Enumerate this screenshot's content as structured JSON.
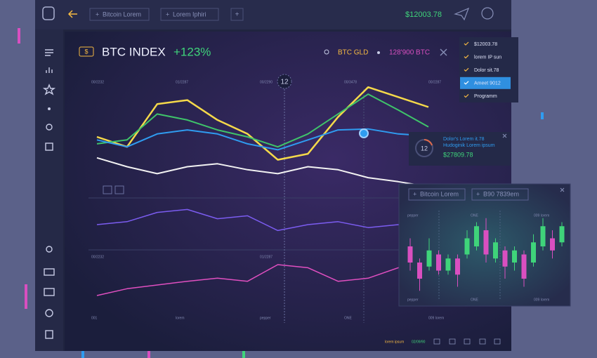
{
  "topbar": {
    "tabs": [
      "Bitcoin Lorem",
      "Lorem Iphiri"
    ],
    "balance": "$12003.78"
  },
  "header": {
    "icon": "$",
    "title": "BTC INDEX",
    "change": "+123%",
    "asset": "BTC GLD",
    "amount": "128'900 BTC"
  },
  "dropdown": {
    "items": [
      "$12003.78",
      "lorem IP sun",
      "Dolor sit.78",
      "Ameet 9012",
      "Programm"
    ],
    "selected": 3
  },
  "main_chart": {
    "marker": "12",
    "labels_top": [
      "00/2232",
      "01/2287",
      "00/2290",
      "00/3478",
      "00/2287"
    ],
    "labels_mid": [
      "00/2232",
      "01/2287",
      "00/2290"
    ],
    "labels_bottom": [
      "001",
      "lorem",
      "pepper",
      "ONE",
      "009 lorem"
    ],
    "ylim": [
      -20,
      100
    ],
    "series": [
      {
        "color": "#f5d94a",
        "values": [
          40,
          30,
          73,
          77,
          57,
          43,
          17,
          23,
          60,
          90,
          80,
          70
        ]
      },
      {
        "color": "#3fc46a",
        "values": [
          33,
          37,
          63,
          57,
          47,
          40,
          30,
          43,
          63,
          83,
          67,
          50
        ]
      },
      {
        "color": "#2f9cf0",
        "values": [
          37,
          30,
          43,
          47,
          43,
          33,
          27,
          37,
          47,
          48,
          43,
          41
        ]
      },
      {
        "color": "#f2f2f2",
        "values": [
          19,
          10,
          3,
          10,
          13,
          7,
          3,
          10,
          7,
          -1,
          -5,
          -10
        ]
      }
    ]
  },
  "osc1": {
    "ylim": [
      0,
      100
    ],
    "color": "#7b5cf0",
    "values": [
      50,
      57,
      79,
      86,
      64,
      71,
      36,
      50,
      57,
      43,
      50,
      36
    ]
  },
  "osc2": {
    "ylim": [
      0,
      100
    ],
    "color": "#e04fc0",
    "values": [
      33,
      44,
      50,
      56,
      61,
      56,
      83,
      78,
      56,
      61,
      78,
      89
    ]
  },
  "tooltip": {
    "badge": "12",
    "line1": "Dolor's Lorem it.78",
    "line2": "Hudoginik Lorem ipsum",
    "value": "$27809.78"
  },
  "candle_panel": {
    "tabs": [
      "Bitcoin Lorem",
      "B90 7839em"
    ],
    "labels_top": [
      "pepper",
      "ONE",
      "009 lorem"
    ],
    "labels_bottom": [
      "pepper",
      "ONE",
      "009 lorem"
    ],
    "ylim": [
      0,
      100
    ],
    "up_color": "#3fd47a",
    "down_color": "#d94fc0",
    "candles": [
      {
        "open": 60,
        "close": 40,
        "high": 70,
        "low": 30
      },
      {
        "open": 40,
        "close": 20,
        "high": 45,
        "low": 5
      },
      {
        "open": 35,
        "close": 55,
        "high": 70,
        "low": 30
      },
      {
        "open": 50,
        "close": 30,
        "high": 55,
        "low": 25
      },
      {
        "open": 30,
        "close": 45,
        "high": 50,
        "low": 25
      },
      {
        "open": 45,
        "close": 25,
        "high": 50,
        "low": 10
      },
      {
        "open": 50,
        "close": 70,
        "high": 80,
        "low": 45
      },
      {
        "open": 60,
        "close": 85,
        "high": 90,
        "low": 55
      },
      {
        "open": 80,
        "close": 50,
        "high": 95,
        "low": 40
      },
      {
        "open": 45,
        "close": 65,
        "high": 70,
        "low": 40
      },
      {
        "open": 55,
        "close": 35,
        "high": 60,
        "low": 20
      },
      {
        "open": 40,
        "close": 55,
        "high": 60,
        "low": 30
      },
      {
        "open": 50,
        "close": 20,
        "high": 55,
        "low": 10
      },
      {
        "open": 40,
        "close": 65,
        "high": 75,
        "low": 35
      },
      {
        "open": 60,
        "close": 85,
        "high": 95,
        "low": 55
      },
      {
        "open": 70,
        "close": 55,
        "high": 80,
        "low": 45
      },
      {
        "open": 65,
        "close": 85,
        "high": 90,
        "low": 60
      }
    ]
  },
  "footer": {
    "text": "lorem ipsum",
    "date": "02/09/90"
  }
}
